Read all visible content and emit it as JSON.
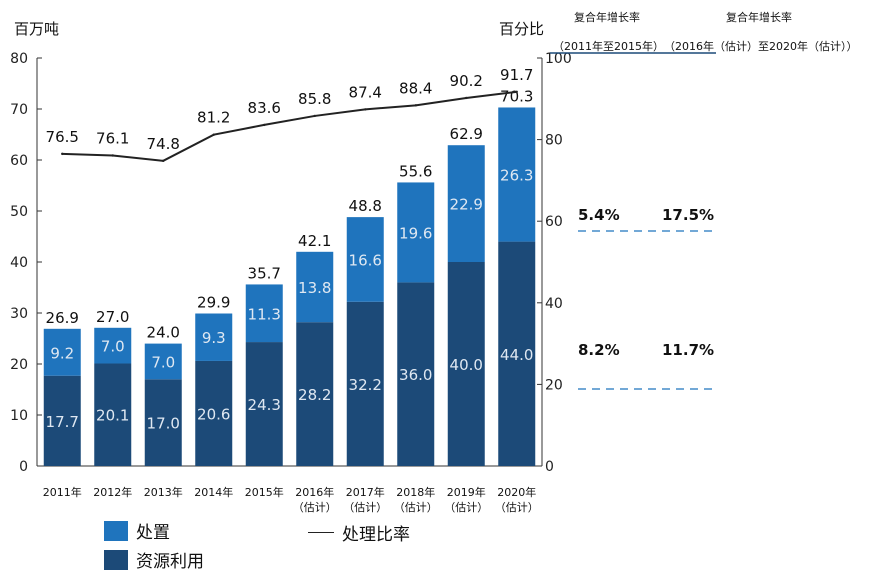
{
  "left_axis_title": "百万吨",
  "right_axis_title": "百分比",
  "cagr": {
    "header_1": "复合年增长率",
    "header_2": "复合年增长率",
    "period_1": "（2011年至2015年）",
    "period_2": "（2016年（估计）至2020年（估计））",
    "disposal_1": "5.4%",
    "disposal_2": "17.5%",
    "reuse_1": "8.2%",
    "reuse_2": "11.7%"
  },
  "legend": {
    "disposal": "处置",
    "reuse": "资源利用",
    "ratio": "处理比率"
  },
  "colors": {
    "disposal": "#1f74bd",
    "reuse": "#1c4a78",
    "line": "#222222",
    "dash": "#1f74bd"
  },
  "chart_data": {
    "type": "bar",
    "categories": [
      "2011年",
      "2012年",
      "2013年",
      "2014年",
      "2015年",
      "2016年",
      "2017年",
      "2018年",
      "2019年",
      "2020年"
    ],
    "category_notes": [
      "",
      "",
      "",
      "",
      "",
      "（估计）",
      "（估计）",
      "（估计）",
      "（估计）",
      "（估计）"
    ],
    "series": [
      {
        "name": "资源利用",
        "values": [
          17.7,
          20.1,
          17.0,
          20.6,
          24.3,
          28.2,
          32.2,
          36.0,
          40.0,
          44.0
        ]
      },
      {
        "name": "处置",
        "values": [
          9.2,
          7.0,
          7.0,
          9.3,
          11.3,
          13.8,
          16.6,
          19.6,
          22.9,
          26.3
        ]
      }
    ],
    "totals": [
      "26.9",
      "27.0",
      "24.0",
      "29.9",
      "35.7",
      "42.1",
      "48.8",
      "55.6",
      "62.9",
      "70.3"
    ],
    "line": {
      "name": "处理比率",
      "values": [
        76.5,
        76.1,
        74.8,
        81.2,
        83.6,
        85.8,
        87.4,
        88.4,
        90.2,
        91.7
      ]
    },
    "ylim": [
      0,
      80
    ],
    "yticks": [
      0,
      10,
      20,
      30,
      40,
      50,
      60,
      70,
      80
    ],
    "y2lim": [
      0,
      100
    ],
    "y2ticks": [
      0,
      20,
      40,
      60,
      80,
      100
    ],
    "stacked": true
  }
}
